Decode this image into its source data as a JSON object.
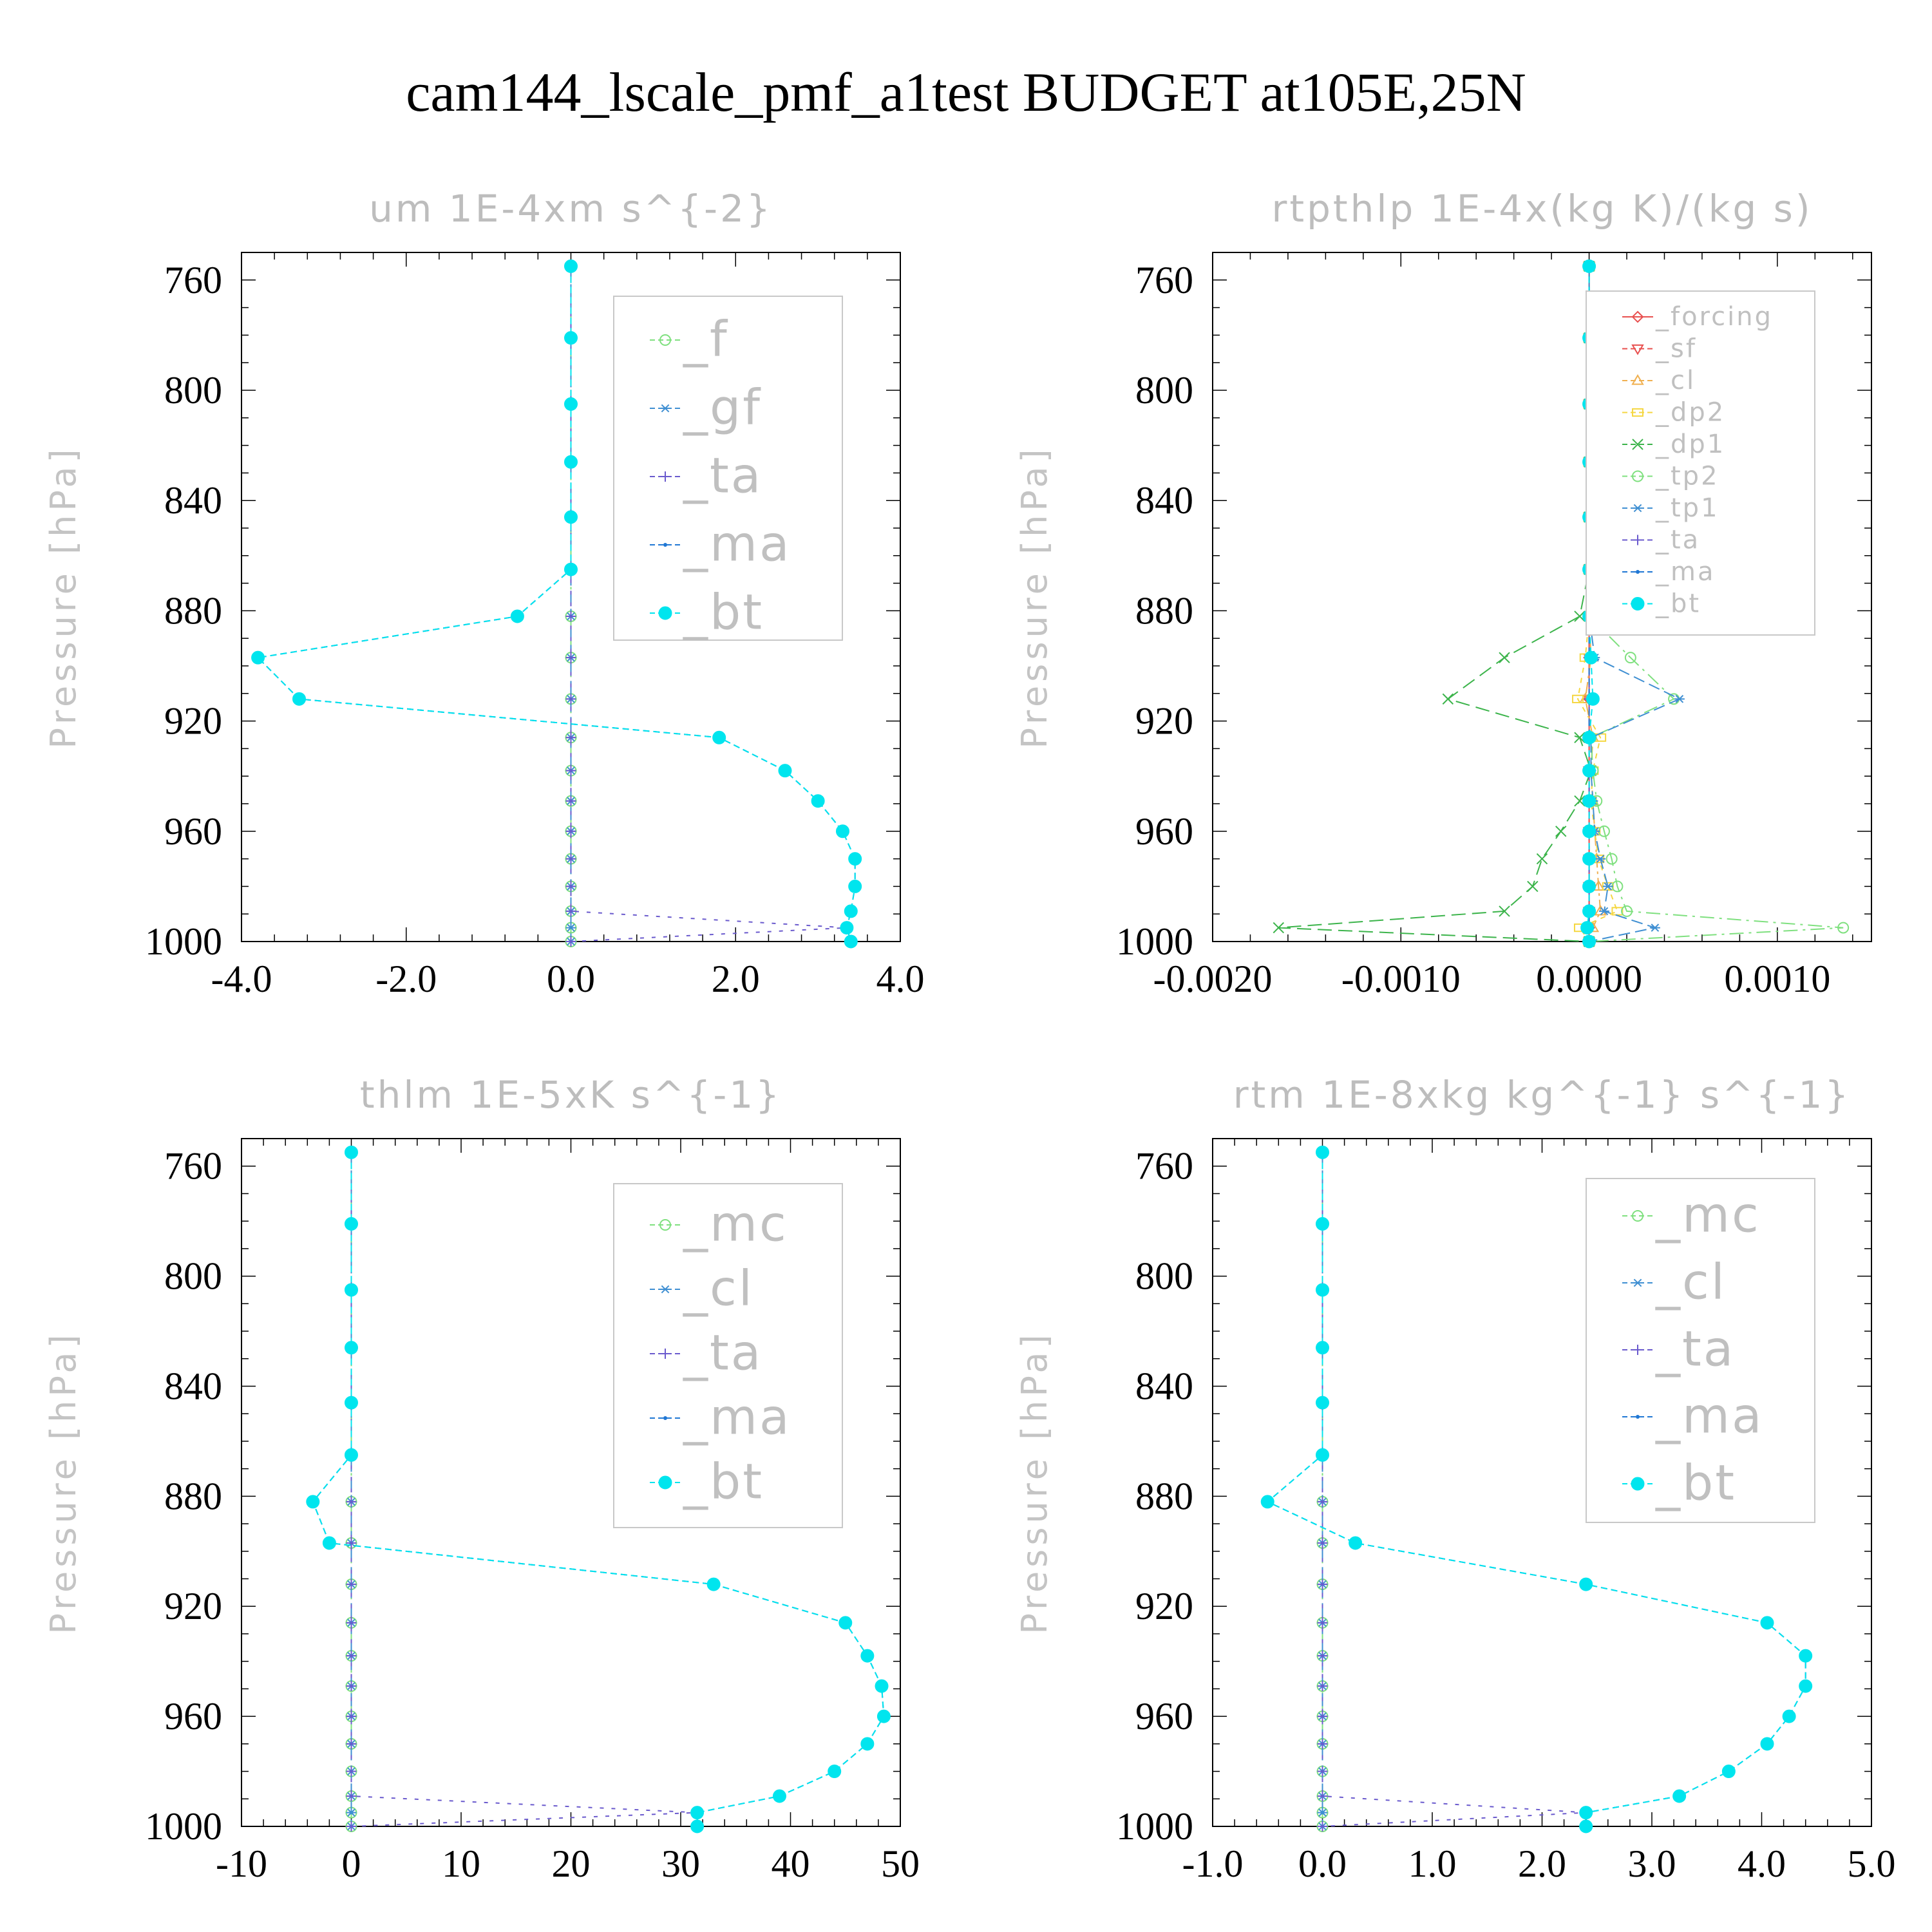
{
  "figure": {
    "title": "cam144_lscale_pmf_a1test  BUDGET at105E,25N"
  },
  "colors": {
    "mc": "#7fe07f",
    "f": "#7fe07f",
    "gf": "#3f8fd2",
    "cl_um": "#3f8fd2",
    "ta": "#6a5acd",
    "ma": "#1f77d4",
    "bt": "#00e5ee",
    "forcing": "#e8504f",
    "sf": "#e8504f",
    "cl_rtp": "#f0b050",
    "dp2": "#f5d742",
    "dp1": "#3cb44b",
    "tp2": "#7fe07f",
    "tp1": "#3f8fd2"
  },
  "chart_data": [
    {
      "type": "line",
      "title": "um   1E-4xm s^{-2}",
      "xlabel": "",
      "ylabel": "Pressure [hPa]",
      "xlim": [
        -4.0,
        4.0
      ],
      "ylim": [
        1000,
        750
      ],
      "xticks": [
        "-4.0",
        "-2.0",
        "0.0",
        "2.0",
        "4.0"
      ],
      "xtick_values": [
        -4,
        -2,
        0,
        2,
        4
      ],
      "yticks": [
        "760",
        "800",
        "840",
        "880",
        "920",
        "960",
        "1000"
      ],
      "ytick_values": [
        760,
        800,
        840,
        880,
        920,
        960,
        1000
      ],
      "legend": {
        "position": "top-right",
        "entries": [
          "_f",
          "_gf",
          "_ta",
          "_ma",
          "_bt"
        ]
      },
      "levels": [
        755,
        781,
        805,
        826,
        846,
        865,
        882,
        897,
        912,
        926,
        938,
        949,
        960,
        970,
        980,
        989,
        995,
        1000
      ],
      "series": [
        {
          "name": "_f",
          "key": "f",
          "values": [
            0,
            0,
            0,
            0,
            0,
            0,
            0,
            0,
            0,
            0,
            0,
            0,
            0,
            0,
            0,
            0,
            0,
            0
          ]
        },
        {
          "name": "_gf",
          "key": "gf",
          "values": [
            0,
            0,
            0,
            0,
            0,
            0,
            0,
            0,
            0,
            0,
            0,
            0,
            0,
            0,
            0,
            0,
            0,
            0
          ]
        },
        {
          "name": "_ta",
          "key": "ta",
          "values": [
            0,
            0,
            0,
            0,
            0,
            0,
            0,
            0,
            0,
            0,
            0,
            0,
            0,
            0,
            0,
            0,
            3.35,
            0
          ]
        },
        {
          "name": "_ma",
          "key": "ma",
          "values": [
            0,
            0,
            0,
            0,
            0,
            0,
            -0.65,
            -3.8,
            -3.3,
            1.8,
            2.6,
            3.0,
            3.3,
            3.45,
            3.45,
            3.4,
            3.35,
            3.4
          ]
        },
        {
          "name": "_bt",
          "key": "bt",
          "values": [
            0,
            0,
            0,
            0,
            0,
            0,
            -0.65,
            -3.8,
            -3.3,
            1.8,
            2.6,
            3.0,
            3.3,
            3.45,
            3.45,
            3.4,
            3.35,
            3.4
          ]
        }
      ]
    },
    {
      "type": "line",
      "title": "rtpthlp   1E-4x(kg K)/(kg s)",
      "xlabel": "",
      "ylabel": "Pressure [hPa]",
      "xlim": [
        -0.002,
        0.0015
      ],
      "ylim": [
        1000,
        750
      ],
      "xticks": [
        "-0.0020",
        "-0.0010",
        "0.0000",
        "0.0010"
      ],
      "xtick_values": [
        -0.002,
        -0.001,
        0.0,
        0.001
      ],
      "yticks": [
        "760",
        "800",
        "840",
        "880",
        "920",
        "960",
        "1000"
      ],
      "ytick_values": [
        760,
        800,
        840,
        880,
        920,
        960,
        1000
      ],
      "legend": {
        "position": "top-right",
        "entries": [
          "_forcing",
          "_sf",
          "_cl",
          "_dp2",
          "_dp1",
          "_tp2",
          "_tp1",
          "_ta",
          "_ma",
          "_bt"
        ]
      },
      "levels": [
        755,
        781,
        805,
        826,
        846,
        865,
        882,
        897,
        912,
        926,
        938,
        949,
        960,
        970,
        980,
        989,
        995,
        1000
      ],
      "series": [
        {
          "name": "_forcing",
          "key": "forcing",
          "values": [
            0,
            0,
            0,
            0,
            0,
            0,
            0,
            0,
            0,
            0,
            0,
            0,
            0,
            0,
            0,
            0,
            0,
            0
          ]
        },
        {
          "name": "_sf",
          "key": "sf",
          "values": [
            0,
            0,
            0,
            0,
            0,
            0,
            0,
            0,
            0,
            0,
            0,
            0,
            0,
            0,
            0,
            0,
            0,
            0
          ]
        },
        {
          "name": "_cl",
          "key": "cl_rtp",
          "values": [
            0,
            0,
            0,
            0,
            0,
            0,
            0,
            1e-05,
            -2e-05,
            2e-05,
            1e-05,
            2e-05,
            3e-05,
            4e-05,
            5e-05,
            6e-05,
            2e-05,
            0
          ]
        },
        {
          "name": "_dp2",
          "key": "dp2",
          "values": [
            0,
            0,
            0,
            0,
            0,
            0,
            0,
            -2e-05,
            -6e-05,
            6e-05,
            2e-05,
            1e-05,
            3e-05,
            5e-05,
            0.0001,
            0.00015,
            -5e-05,
            0
          ]
        },
        {
          "name": "_dp1",
          "key": "dp1",
          "values": [
            0,
            0,
            0,
            0,
            0,
            0,
            -5e-05,
            -0.00045,
            -0.00075,
            -5e-05,
            1e-05,
            -5e-05,
            -0.00015,
            -0.00025,
            -0.0003,
            -0.00045,
            -0.00165,
            0
          ]
        },
        {
          "name": "_tp2",
          "key": "tp2",
          "values": [
            0,
            0,
            0,
            0,
            0,
            0,
            0,
            0.00022,
            0.00045,
            1e-05,
            2e-05,
            4e-05,
            8e-05,
            0.00012,
            0.00015,
            0.0002,
            0.00135,
            0
          ]
        },
        {
          "name": "_tp1",
          "key": "tp1",
          "values": [
            0,
            0,
            0,
            0,
            0,
            0,
            0,
            3e-05,
            0.00048,
            1e-05,
            1e-05,
            2e-05,
            3e-05,
            6e-05,
            0.0001,
            8e-05,
            0.00035,
            0
          ]
        },
        {
          "name": "_ta",
          "key": "ta",
          "values": [
            0,
            0,
            0,
            0,
            0,
            0,
            0,
            0,
            0,
            0,
            0,
            0,
            0,
            0,
            0,
            0,
            0,
            0
          ]
        },
        {
          "name": "_ma",
          "key": "ma",
          "values": [
            0,
            0,
            0,
            0,
            0,
            0,
            0,
            0,
            0,
            0,
            0,
            0,
            0,
            0,
            0,
            0,
            0,
            0
          ]
        },
        {
          "name": "_bt",
          "key": "bt",
          "values": [
            0,
            0,
            0,
            0,
            0,
            0,
            0,
            1e-05,
            2e-05,
            0,
            0,
            0,
            0,
            0,
            0,
            0,
            -1e-05,
            0
          ]
        }
      ]
    },
    {
      "type": "line",
      "title": "thlm   1E-5xK s^{-1}",
      "xlabel": "",
      "ylabel": "Pressure [hPa]",
      "xlim": [
        -10,
        50
      ],
      "ylim": [
        1000,
        750
      ],
      "xticks": [
        "-10",
        "0",
        "10",
        "20",
        "30",
        "40",
        "50"
      ],
      "xtick_values": [
        -10,
        0,
        10,
        20,
        30,
        40,
        50
      ],
      "yticks": [
        "760",
        "800",
        "840",
        "880",
        "920",
        "960",
        "1000"
      ],
      "ytick_values": [
        760,
        800,
        840,
        880,
        920,
        960,
        1000
      ],
      "legend": {
        "position": "top-right",
        "entries": [
          "_mc",
          "_cl",
          "_ta",
          "_ma",
          "_bt"
        ]
      },
      "levels": [
        755,
        781,
        805,
        826,
        846,
        865,
        882,
        897,
        912,
        926,
        938,
        949,
        960,
        970,
        980,
        989,
        995,
        1000
      ],
      "series": [
        {
          "name": "_mc",
          "key": "mc",
          "values": [
            0,
            0,
            0,
            0,
            0,
            0,
            0,
            0,
            0,
            0,
            0,
            0,
            0,
            0,
            0,
            0,
            0,
            0
          ]
        },
        {
          "name": "_cl",
          "key": "cl_um",
          "values": [
            0,
            0,
            0,
            0,
            0,
            0,
            0,
            0,
            0,
            0,
            0,
            0,
            0,
            0,
            0,
            0,
            0,
            0
          ]
        },
        {
          "name": "_ta",
          "key": "ta",
          "values": [
            0,
            0,
            0,
            0,
            0,
            0,
            0,
            0,
            0,
            0,
            0,
            0,
            0,
            0,
            0,
            0,
            31.5,
            0
          ]
        },
        {
          "name": "_ma",
          "key": "ma",
          "values": [
            0,
            0,
            0,
            0,
            0,
            0,
            -3.5,
            -2.0,
            33.0,
            45.0,
            47.0,
            48.3,
            48.5,
            47.0,
            44.0,
            39.0,
            31.5,
            31.5
          ]
        },
        {
          "name": "_bt",
          "key": "bt",
          "values": [
            0,
            0,
            0,
            0,
            0,
            0,
            -3.5,
            -2.0,
            33.0,
            45.0,
            47.0,
            48.3,
            48.5,
            47.0,
            44.0,
            39.0,
            31.5,
            31.5
          ]
        }
      ]
    },
    {
      "type": "line",
      "title": "rtm   1E-8xkg kg^{-1} s^{-1}",
      "xlabel": "",
      "ylabel": "Pressure [hPa]",
      "xlim": [
        -1.0,
        5.0
      ],
      "ylim": [
        1000,
        750
      ],
      "xticks": [
        "-1.0",
        "0.0",
        "1.0",
        "2.0",
        "3.0",
        "4.0",
        "5.0"
      ],
      "xtick_values": [
        -1,
        0,
        1,
        2,
        3,
        4,
        5
      ],
      "yticks": [
        "760",
        "800",
        "840",
        "880",
        "920",
        "960",
        "1000"
      ],
      "ytick_values": [
        760,
        800,
        840,
        880,
        920,
        960,
        1000
      ],
      "legend": {
        "position": "top-right",
        "entries": [
          "_mc",
          "_cl",
          "_ta",
          "_ma",
          "_bt"
        ]
      },
      "levels": [
        755,
        781,
        805,
        826,
        846,
        865,
        882,
        897,
        912,
        926,
        938,
        949,
        960,
        970,
        980,
        989,
        995,
        1000
      ],
      "series": [
        {
          "name": "_mc",
          "key": "mc",
          "values": [
            0,
            0,
            0,
            0,
            0,
            0,
            0,
            0,
            0,
            0,
            0,
            0,
            0,
            0,
            0,
            0,
            0,
            0
          ]
        },
        {
          "name": "_cl",
          "key": "cl_um",
          "values": [
            0,
            0,
            0,
            0,
            0,
            0,
            0,
            0,
            0,
            0,
            0,
            0,
            0,
            0,
            0,
            0,
            0,
            0
          ]
        },
        {
          "name": "_ta",
          "key": "ta",
          "values": [
            0,
            0,
            0,
            0,
            0,
            0,
            0,
            0,
            0,
            0,
            0,
            0,
            0,
            0,
            0,
            0,
            2.4,
            0
          ]
        },
        {
          "name": "_ma",
          "key": "ma",
          "values": [
            0,
            0,
            0,
            0,
            0,
            0,
            -0.5,
            0.3,
            2.4,
            4.05,
            4.4,
            4.4,
            4.25,
            4.05,
            3.7,
            3.25,
            2.4,
            2.4
          ]
        },
        {
          "name": "_bt",
          "key": "bt",
          "values": [
            0,
            0,
            0,
            0,
            0,
            0,
            -0.5,
            0.3,
            2.4,
            4.05,
            4.4,
            4.4,
            4.25,
            4.05,
            3.7,
            3.25,
            2.4,
            2.4
          ]
        }
      ]
    }
  ]
}
